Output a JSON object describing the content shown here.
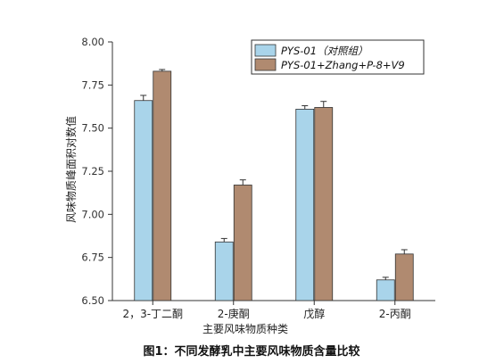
{
  "caption": "图1：不同发酵乳中主要风味物质含量比较",
  "chart_data": {
    "type": "bar",
    "title": "",
    "xlabel": "主要风味物质种类",
    "ylabel": "风味物质峰面积对数值",
    "categories": [
      "2，3-丁二酮",
      "2-庚酮",
      "戊醇",
      "2-丙酮"
    ],
    "ylim": [
      6.5,
      8.0
    ],
    "yticks": [
      "6.50",
      "6.75",
      "7.00",
      "7.25",
      "7.50",
      "7.75",
      "8.00"
    ],
    "grid": false,
    "legend_position": "top-right",
    "series": [
      {
        "name": "PYS-01（对照组）",
        "color": "#a9d4ea",
        "values": [
          7.66,
          6.84,
          7.61,
          6.62
        ],
        "errors": [
          0.03,
          0.02,
          0.02,
          0.015
        ]
      },
      {
        "name": "PYS-01+Zhang+P-8+V9",
        "color": "#b08a70",
        "values": [
          7.83,
          7.17,
          7.62,
          6.77
        ],
        "errors": [
          0.01,
          0.03,
          0.035,
          0.025
        ]
      }
    ]
  }
}
